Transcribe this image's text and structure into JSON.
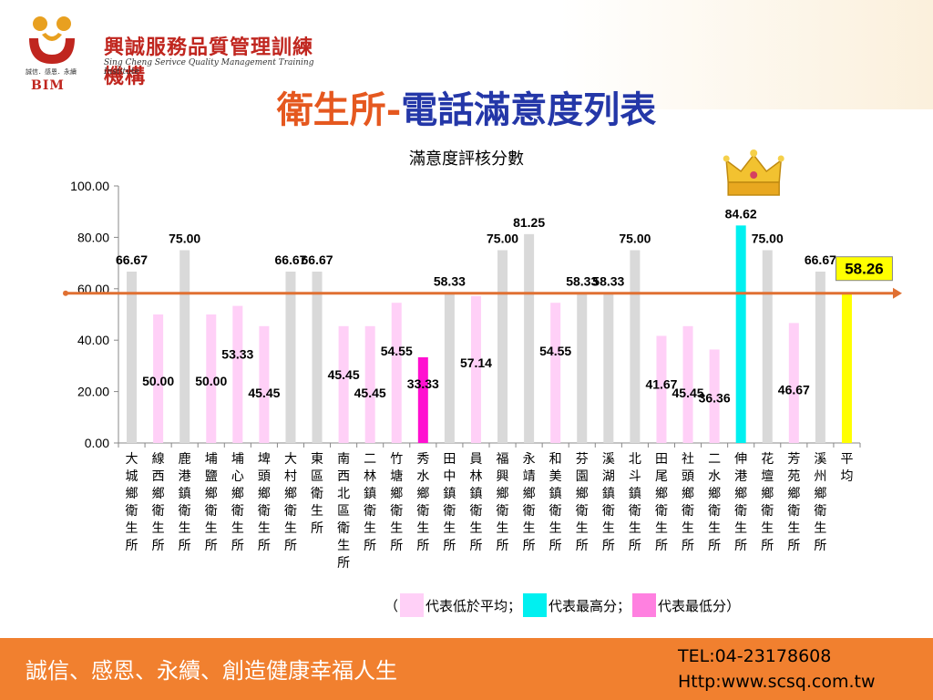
{
  "header": {
    "logo_name": "興誠服務品質管理訓練機構",
    "logo_sub": "Sing Cheng Serivce Quality Management Training Institute",
    "logo_small": "誠信．感恩．永續",
    "logo_abbr": "BIM"
  },
  "title": {
    "part1": "衛生所",
    "part2": "電話滿意度列表"
  },
  "chart_data": {
    "type": "bar",
    "title": "滿意度評核分數",
    "ylim": [
      0,
      100
    ],
    "yticks": [
      "0.00",
      "20.00",
      "40.00",
      "60.00",
      "80.00",
      "100.00"
    ],
    "categories": [
      "大城鄉衛生所",
      "線西鄉衛生所",
      "鹿港鎮衛生所",
      "埔鹽鄉衛生所",
      "埔心鄉衛生所",
      "埤頭鄉衛生所",
      "大村鄉衛生所",
      "東區衛生所",
      "南西北區衛生所",
      "二林鎮衛生所",
      "竹塘鄉衛生所",
      "秀水鄉衛生所",
      "田中鎮衛生所",
      "員林鎮衛生所",
      "福興鄉衛生所",
      "永靖鄉衛生所",
      "和美鎮衛生所",
      "芬園鄉衛生所",
      "溪湖鎮衛生所",
      "北斗鎮衛生所",
      "田尾鄉衛生所",
      "社頭鄉衛生所",
      "二水鄉衛生所",
      "伸港鄉衛生所",
      "花壇鄉衛生所",
      "芳苑鄉衛生所",
      "溪州鄉衛生所",
      "平均"
    ],
    "values": [
      66.67,
      50.0,
      75.0,
      50.0,
      53.33,
      45.45,
      66.67,
      66.67,
      45.45,
      45.45,
      54.55,
      33.33,
      58.33,
      57.14,
      75.0,
      81.25,
      54.55,
      58.33,
      58.33,
      75.0,
      41.67,
      45.45,
      36.36,
      84.62,
      75.0,
      46.67,
      66.67,
      58.26
    ],
    "labels": [
      "66.67",
      "50.00",
      "75.00",
      "50.00",
      "53.33",
      "45.45",
      "66.67",
      "66.67",
      "45.45",
      "45.45",
      "54.55",
      "33.33",
      "58.33",
      "57.14",
      "75.00",
      "81.25",
      "54.55",
      "58.33",
      "58.33",
      "75.00",
      "41.67",
      "45.45",
      "36.36",
      "84.62",
      "75.00",
      "46.67",
      "66.67",
      "58.26"
    ],
    "average": 58.26,
    "average_label": "58.26",
    "colors": {
      "above_average": "#d9d9d9",
      "below_average": "#ffd0f7",
      "highest": "#00f0f0",
      "lowest": "#ff10d0",
      "average_bar": "#ffff00",
      "average_line": "#e07032"
    },
    "grid": false,
    "icon": "crown-icon"
  },
  "legend": {
    "open": "（",
    "items": [
      {
        "color": "#ffd0f7",
        "text": "代表低於平均；"
      },
      {
        "color": "#00f0f0",
        "text": "代表最高分；"
      },
      {
        "color": "#ff80e0",
        "text": "代表最低分"
      }
    ],
    "close": "）"
  },
  "footer": {
    "slogan": "誠信、感恩、永續、創造健康幸福人生",
    "tel": "TEL:04-23178608",
    "web": "Http:www.scsq.com.tw"
  }
}
